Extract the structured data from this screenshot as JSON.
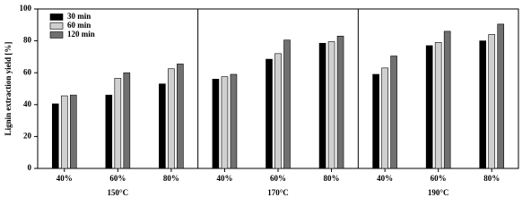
{
  "chart_data": {
    "type": "bar",
    "ylabel": "Lignin extraction yield [%]",
    "categories": [
      "40%",
      "60%",
      "80%",
      "40%",
      "60%",
      "80%",
      "40%",
      "60%",
      "80%"
    ],
    "groups": [
      "150°C",
      "170°C",
      "190°C"
    ],
    "series": [
      {
        "name": "30 min",
        "color": "#000000",
        "values": [
          40.5,
          46,
          53,
          56,
          68.5,
          78.5,
          59,
          77,
          80
        ]
      },
      {
        "name": "60 min",
        "color": "#d0d0d0",
        "values": [
          45.5,
          56.5,
          62.5,
          57.5,
          72,
          79.5,
          63,
          79,
          84
        ]
      },
      {
        "name": "120 min",
        "color": "#707070",
        "values": [
          46,
          60,
          65.5,
          59,
          80.5,
          83,
          70.5,
          86,
          90.5
        ]
      }
    ],
    "ylim": [
      0,
      100
    ],
    "yticks": [
      0,
      20,
      40,
      60,
      80,
      100
    ],
    "legend": "upper left"
  }
}
